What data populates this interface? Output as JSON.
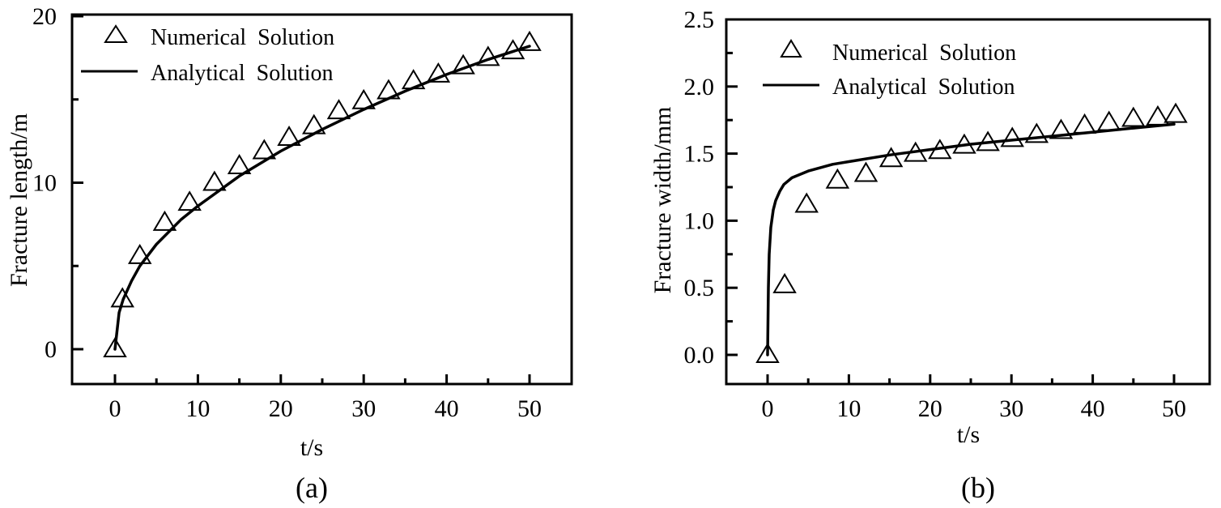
{
  "figure": {
    "panels": [
      {
        "id": "a",
        "label": "(a)",
        "xlabel": "t/s",
        "ylabel": "Fracture length/m",
        "legend": {
          "numerical": "Numerical  Solution",
          "analytical": "Analytical  Solution"
        }
      },
      {
        "id": "b",
        "label": "(b)",
        "xlabel": "t/s",
        "ylabel": "Fracture width/mm",
        "legend": {
          "numerical": "Numerical  Solution",
          "analytical": "Analytical  Solution"
        }
      }
    ]
  },
  "chart_data": [
    {
      "type": "line",
      "title": "(a)",
      "xlabel": "t/s",
      "ylabel": "Fracture length/m",
      "xlim": [
        -5,
        55
      ],
      "ylim": [
        -2,
        20
      ],
      "xticks": [
        0,
        10,
        20,
        30,
        40,
        50
      ],
      "xticks_minor": [
        5,
        15,
        25,
        35,
        45
      ],
      "yticks": [
        0,
        10,
        20
      ],
      "yticks_minor": [
        5,
        15
      ],
      "grid": false,
      "legend_position": "upper left",
      "series": [
        {
          "name": "Numerical  Solution",
          "marker": "triangle-open",
          "x": [
            0,
            0.9,
            3,
            6,
            9,
            12,
            15,
            18,
            21,
            24,
            27,
            30,
            33,
            36,
            39,
            42,
            45,
            48,
            50
          ],
          "y": [
            0,
            3.0,
            5.6,
            7.6,
            8.8,
            10.0,
            11.0,
            11.9,
            12.7,
            13.4,
            14.3,
            14.9,
            15.5,
            16.1,
            16.5,
            17.0,
            17.5,
            17.9,
            18.4
          ]
        },
        {
          "name": "Analytical  Solution",
          "line": "solid",
          "x": [
            0,
            0.5,
            1,
            2,
            3,
            5,
            8,
            10,
            15,
            20,
            25,
            30,
            35,
            40,
            45,
            50
          ],
          "y": [
            0,
            2.2,
            3.0,
            4.1,
            5.0,
            6.3,
            7.8,
            8.6,
            10.4,
            11.9,
            13.2,
            14.4,
            15.5,
            16.5,
            17.4,
            18.2
          ]
        }
      ]
    },
    {
      "type": "line",
      "title": "(b)",
      "xlabel": "t/s",
      "ylabel": "Fracture width/mm",
      "xlim": [
        -5,
        55
      ],
      "ylim": [
        -0.2,
        2.5
      ],
      "xticks": [
        0,
        10,
        20,
        30,
        40,
        50
      ],
      "xticks_minor": [
        5,
        15,
        25,
        35,
        45
      ],
      "yticks": [
        0.0,
        0.5,
        1.0,
        1.5,
        2.0,
        2.5
      ],
      "yticks_minor": [
        0.25,
        0.75,
        1.25,
        1.75,
        2.25
      ],
      "grid": false,
      "legend_position": "upper left",
      "series": [
        {
          "name": "Numerical  Solution",
          "marker": "triangle-open",
          "x": [
            0,
            2.1,
            4.8,
            8.6,
            12.1,
            15.2,
            18.2,
            21.2,
            24.2,
            27.1,
            30.1,
            33.1,
            36.1,
            39.0,
            42.0,
            45.0,
            48.0,
            50.2
          ],
          "y": [
            0.0,
            0.52,
            1.12,
            1.3,
            1.35,
            1.46,
            1.5,
            1.52,
            1.56,
            1.58,
            1.61,
            1.64,
            1.67,
            1.71,
            1.73,
            1.76,
            1.77,
            1.79
          ]
        },
        {
          "name": "Analytical  Solution",
          "line": "solid",
          "x": [
            0,
            0.1,
            0.2,
            0.4,
            0.7,
            1,
            1.5,
            2,
            3,
            5,
            8,
            10,
            15,
            20,
            25,
            30,
            35,
            40,
            45,
            50
          ],
          "y": [
            0.0,
            0.5,
            0.75,
            0.95,
            1.08,
            1.15,
            1.22,
            1.27,
            1.32,
            1.37,
            1.42,
            1.44,
            1.49,
            1.53,
            1.57,
            1.6,
            1.63,
            1.66,
            1.69,
            1.72
          ]
        }
      ]
    }
  ]
}
